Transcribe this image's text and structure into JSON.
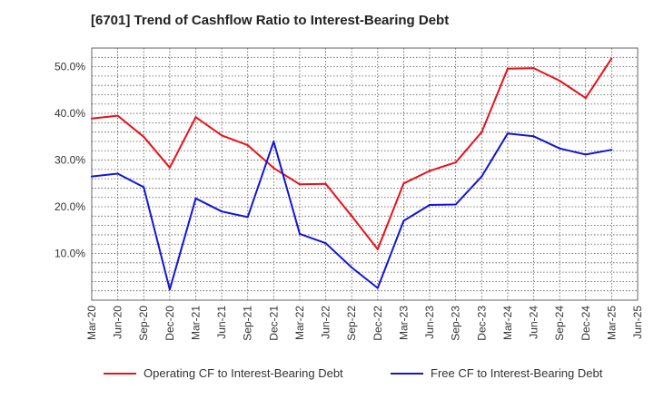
{
  "title": "[6701]  Trend of Cashflow Ratio to Interest-Bearing Debt",
  "chart_data": {
    "type": "line",
    "x": [
      "Mar-20",
      "Jun-20",
      "Sep-20",
      "Dec-20",
      "Mar-21",
      "Jun-21",
      "Sep-21",
      "Dec-21",
      "Mar-22",
      "Jun-22",
      "Sep-22",
      "Dec-22",
      "Mar-23",
      "Jun-23",
      "Sep-23",
      "Dec-23",
      "Mar-24",
      "Jun-24",
      "Sep-24",
      "Dec-24",
      "Mar-25",
      "Jun-25"
    ],
    "xlabel": "",
    "ylabel": "",
    "ylim": [
      0,
      54
    ],
    "y_ticks": [
      10,
      20,
      30,
      40,
      50
    ],
    "y_tick_labels": [
      "10.0%",
      "20.0%",
      "30.0%",
      "40.0%",
      "50.0%"
    ],
    "grid": true,
    "legend_position": "bottom",
    "series": [
      {
        "name": "Operating CF to Interest-Bearing Debt",
        "color": "#e8111a",
        "values": [
          38.9,
          39.5,
          35.0,
          28.4,
          39.2,
          35.3,
          33.2,
          28.3,
          24.8,
          24.9,
          18.0,
          10.9,
          25.0,
          27.7,
          29.5,
          36.0,
          49.6,
          49.7,
          47.0,
          43.3,
          51.8,
          null
        ]
      },
      {
        "name": "Free CF to Interest-Bearing Debt",
        "color": "#1414d6",
        "values": [
          26.5,
          27.1,
          24.2,
          2.3,
          21.8,
          19.0,
          17.8,
          34.0,
          14.2,
          12.2,
          7.0,
          2.6,
          17.0,
          20.4,
          20.5,
          26.5,
          35.7,
          35.1,
          32.5,
          31.2,
          32.2,
          null
        ]
      }
    ]
  }
}
